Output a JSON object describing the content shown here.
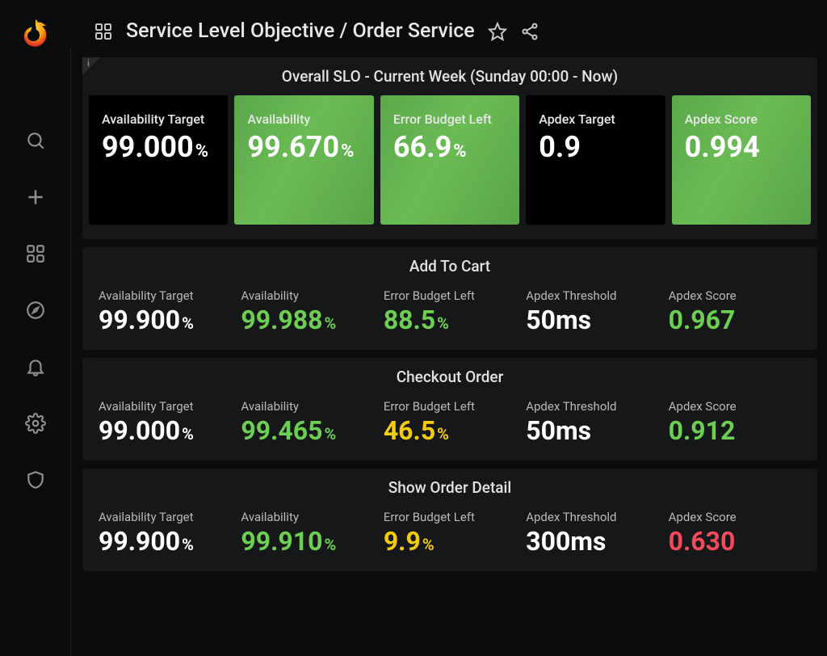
{
  "colors": {
    "background": "#0b0c0e",
    "panel_bg": "#161719",
    "tile_black": "#000000",
    "tile_green_gradient": [
      "#5aa84a",
      "#6bbb55",
      "#58a547"
    ],
    "text_white": "#ffffff",
    "text_green": "#6ccf53",
    "text_yellow": "#f2cc0c",
    "text_red": "#f2495c",
    "text_muted": "#b8b9ba"
  },
  "header": {
    "title": "Service Level Objective / Order Service"
  },
  "sidebar": {
    "items": [
      {
        "name": "search",
        "icon": "search-icon"
      },
      {
        "name": "add",
        "icon": "plus-icon"
      },
      {
        "name": "dashboards",
        "icon": "grid-icon"
      },
      {
        "name": "explore",
        "icon": "compass-icon"
      },
      {
        "name": "alerting",
        "icon": "bell-icon"
      },
      {
        "name": "configuration",
        "icon": "gear-icon"
      },
      {
        "name": "admin",
        "icon": "shield-icon"
      }
    ]
  },
  "overall": {
    "title": "Overall SLO - Current Week (Sunday 00:00 - Now)",
    "tiles": [
      {
        "label": "Availability Target",
        "value": "99.000",
        "unit": "%",
        "bg": "black"
      },
      {
        "label": "Availability",
        "value": "99.670",
        "unit": "%",
        "bg": "green"
      },
      {
        "label": "Error Budget Left",
        "value": "66.9",
        "unit": "%",
        "bg": "green"
      },
      {
        "label": "Apdex Target",
        "value": "0.9",
        "unit": "",
        "bg": "black"
      },
      {
        "label": "Apdex Score",
        "value": "0.994",
        "unit": "",
        "bg": "green"
      }
    ]
  },
  "sections": [
    {
      "title": "Add To Cart",
      "stats": [
        {
          "label": "Availability Target",
          "value": "99.900",
          "unit": "%",
          "color": "white"
        },
        {
          "label": "Availability",
          "value": "99.988",
          "unit": "%",
          "color": "green"
        },
        {
          "label": "Error Budget Left",
          "value": "88.5",
          "unit": "%",
          "color": "green"
        },
        {
          "label": "Apdex Threshold",
          "value": "50ms",
          "unit": "",
          "color": "white"
        },
        {
          "label": "Apdex Score",
          "value": "0.967",
          "unit": "",
          "color": "green"
        }
      ]
    },
    {
      "title": "Checkout Order",
      "stats": [
        {
          "label": "Availability Target",
          "value": "99.000",
          "unit": "%",
          "color": "white"
        },
        {
          "label": "Availability",
          "value": "99.465",
          "unit": "%",
          "color": "green"
        },
        {
          "label": "Error Budget Left",
          "value": "46.5",
          "unit": "%",
          "color": "yellow"
        },
        {
          "label": "Apdex Threshold",
          "value": "50ms",
          "unit": "",
          "color": "white"
        },
        {
          "label": "Apdex Score",
          "value": "0.912",
          "unit": "",
          "color": "green"
        }
      ]
    },
    {
      "title": "Show Order Detail",
      "stats": [
        {
          "label": "Availability Target",
          "value": "99.900",
          "unit": "%",
          "color": "white"
        },
        {
          "label": "Availability",
          "value": "99.910",
          "unit": "%",
          "color": "green"
        },
        {
          "label": "Error Budget Left",
          "value": "9.9",
          "unit": "%",
          "color": "yellow"
        },
        {
          "label": "Apdex Threshold",
          "value": "300ms",
          "unit": "",
          "color": "white"
        },
        {
          "label": "Apdex Score",
          "value": "0.630",
          "unit": "",
          "color": "red"
        }
      ]
    }
  ]
}
